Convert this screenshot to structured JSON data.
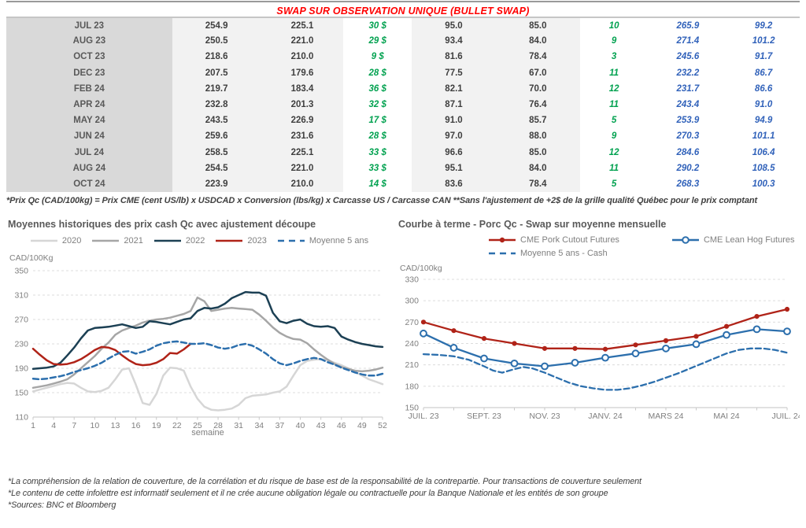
{
  "title": "SWAP SUR OBSERVATION UNIQUE (BULLET SWAP)",
  "table": {
    "rows": [
      [
        "JUL 23",
        "254.9",
        "225.1",
        "30 $",
        "95.0",
        "85.0",
        "10",
        "265.9",
        "99.2"
      ],
      [
        "AUG 23",
        "250.5",
        "221.0",
        "29 $",
        "93.4",
        "84.0",
        "9",
        "271.4",
        "101.2"
      ],
      [
        "OCT 23",
        "218.6",
        "210.0",
        "9 $",
        "81.6",
        "78.4",
        "3",
        "245.6",
        "91.7"
      ],
      [
        "DEC 23",
        "207.5",
        "179.6",
        "28 $",
        "77.5",
        "67.0",
        "11",
        "232.2",
        "86.7"
      ],
      [
        "FEB 24",
        "219.7",
        "183.4",
        "36 $",
        "82.1",
        "70.0",
        "12",
        "231.7",
        "86.6"
      ],
      [
        "APR 24",
        "232.8",
        "201.3",
        "32 $",
        "87.1",
        "76.4",
        "11",
        "243.4",
        "91.0"
      ],
      [
        "MAY 24",
        "243.5",
        "226.9",
        "17 $",
        "91.0",
        "85.7",
        "5",
        "253.9",
        "94.9"
      ],
      [
        "JUN 24",
        "259.6",
        "231.6",
        "28 $",
        "97.0",
        "88.0",
        "9",
        "270.3",
        "101.1"
      ],
      [
        "JUL 24",
        "258.5",
        "225.1",
        "33 $",
        "96.6",
        "85.0",
        "12",
        "284.6",
        "106.4"
      ],
      [
        "AUG 24",
        "254.5",
        "221.0",
        "33 $",
        "95.1",
        "84.0",
        "11",
        "290.2",
        "108.5"
      ],
      [
        "OCT 24",
        "223.9",
        "210.0",
        "14 $",
        "83.6",
        "78.4",
        "5",
        "268.3",
        "100.3"
      ]
    ]
  },
  "table_footnote": "*Prix Qc (CAD/100kg) = Prix CME (cent US/lb) x USDCAD x Conversion (lbs/kg) x Carcasse US / Carcasse CAN **Sans l'ajustement de +2$ de la grille qualité Québec pour le prix comptant",
  "footnotes": [
    "*La compréhension de la relation de couverture, de la corrélation et du risque de base est de la responsabilité de la contrepartie. Pour transactions de couverture seulement",
    "*Le contenu de cette infolettre est informatif seulement et il ne crée aucune obligation légale ou contractuelle pour la Banque Nationale et les entités de son groupe",
    "*Sources: BNC et Bloomberg"
  ],
  "chart_data": [
    {
      "type": "line",
      "title": "Moyennes historiques des prix cash Qc avec ajustement découpe",
      "unit_label": "CAD/100Kg",
      "xlabel": "semaine",
      "xlim": [
        1,
        52
      ],
      "ylim": [
        110,
        350
      ],
      "yticks": [
        110,
        150,
        190,
        230,
        270,
        310,
        350
      ],
      "xticks": [
        1,
        4,
        7,
        10,
        13,
        16,
        19,
        22,
        25,
        28,
        31,
        34,
        37,
        40,
        43,
        46,
        49,
        52
      ],
      "grid": "dashed-horizontal",
      "legend_position": "top",
      "series": [
        {
          "name": "2020",
          "color": "#d6d6d6",
          "values": [
            152,
            155,
            158,
            161,
            164,
            166,
            165,
            158,
            152,
            151,
            153,
            158,
            172,
            188,
            190,
            163,
            133,
            130,
            148,
            178,
            191,
            190,
            186,
            160,
            140,
            127,
            122,
            121,
            122,
            124,
            130,
            141,
            145,
            146,
            147,
            150,
            152,
            160,
            178,
            195,
            202,
            204,
            205,
            203,
            199,
            195,
            190,
            184,
            178,
            172,
            168,
            164
          ]
        },
        {
          "name": "2021",
          "color": "#a6a6a6",
          "values": [
            158,
            160,
            162,
            165,
            168,
            172,
            180,
            190,
            200,
            210,
            222,
            232,
            245,
            252,
            256,
            260,
            265,
            268,
            270,
            271,
            273,
            276,
            279,
            284,
            306,
            300,
            284,
            286,
            288,
            289,
            288,
            287,
            286,
            278,
            268,
            257,
            248,
            242,
            238,
            237,
            231,
            221,
            212,
            204,
            197,
            192,
            189,
            186,
            185,
            186,
            188,
            191
          ]
        },
        {
          "name": "2022",
          "color": "#1c4054",
          "values": [
            189,
            190,
            191,
            193,
            199,
            211,
            224,
            239,
            252,
            256,
            257,
            258,
            260,
            262,
            259,
            256,
            258,
            267,
            266,
            264,
            262,
            266,
            270,
            272,
            284,
            289,
            288,
            290,
            296,
            305,
            310,
            315,
            314,
            314,
            309,
            281,
            267,
            264,
            268,
            270,
            263,
            259,
            258,
            259,
            256,
            242,
            237,
            233,
            230,
            228,
            226,
            225
          ]
        },
        {
          "name": "2023",
          "color": "#b02318",
          "values": [
            222,
            212,
            203,
            197,
            196,
            197,
            200,
            205,
            212,
            220,
            225,
            224,
            220,
            211,
            203,
            197,
            195,
            196,
            199,
            205,
            215,
            214,
            221,
            230
          ]
        },
        {
          "name": "Moyenne 5 ans",
          "color": "#2c6fad",
          "dash": true,
          "values": [
            173,
            172,
            173,
            175,
            177,
            180,
            184,
            187,
            190,
            194,
            199,
            206,
            212,
            217,
            218,
            214,
            217,
            221,
            227,
            231,
            233,
            234,
            232,
            230,
            230,
            231,
            228,
            224,
            222,
            224,
            228,
            230,
            227,
            221,
            214,
            205,
            198,
            195,
            198,
            202,
            205,
            207,
            205,
            200,
            196,
            191,
            187,
            183,
            180,
            178,
            178,
            181
          ]
        }
      ]
    },
    {
      "type": "line",
      "title": "Courbe à terme - Porc Qc - Swap sur moyenne mensuelle",
      "unit_label": "CAD/100kg",
      "xlim": [
        0,
        12
      ],
      "ylim": [
        150,
        330
      ],
      "yticks": [
        150,
        180,
        210,
        240,
        270,
        300,
        330
      ],
      "xtick_positions": [
        0,
        2,
        4,
        6,
        8,
        10,
        12
      ],
      "xtick_labels": [
        "JUIL. 23",
        "SEPT. 23",
        "NOV. 23",
        "JANV. 24",
        "MARS 24",
        "MAI 24",
        "JUIL. 24"
      ],
      "grid": "dashed-horizontal",
      "legend_position": "top",
      "series": [
        {
          "name": "CME Pork Cutout Futures",
          "color": "#b02318",
          "marker": "dot",
          "values": [
            270,
            258,
            247,
            240,
            233,
            233,
            232,
            238,
            244,
            250,
            264,
            278,
            288
          ]
        },
        {
          "name": "CME Lean Hog Futures",
          "color": "#2c6fad",
          "marker": "circle",
          "values": [
            254,
            234,
            219,
            212,
            208,
            213,
            220,
            226,
            233,
            239,
            252,
            260,
            257
          ]
        },
        {
          "name": "Moyenne 5 ans - Cash",
          "color": "#2c6fad",
          "dash": true,
          "x": [
            0,
            0.5,
            1,
            1.5,
            2,
            2.3,
            2.6,
            3,
            3.3,
            3.6,
            4,
            4.4,
            4.8,
            5.2,
            5.6,
            6,
            6.4,
            6.8,
            7.2,
            7.6,
            8,
            8.4,
            8.8,
            9.2,
            9.6,
            10,
            10.4,
            10.8,
            11.2,
            11.6,
            12
          ],
          "values": [
            225,
            224,
            222,
            217,
            208,
            202,
            199,
            204,
            207,
            205,
            199,
            192,
            185,
            180,
            177,
            175,
            175,
            177,
            181,
            186,
            192,
            198,
            205,
            212,
            219,
            226,
            231,
            233,
            233,
            231,
            227
          ]
        }
      ]
    }
  ]
}
